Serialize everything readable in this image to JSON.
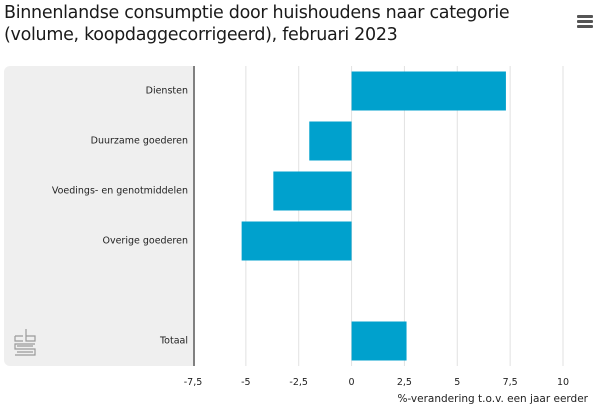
{
  "header": {
    "title_line1": "Binnenlandse consumptie door huishoudens naar categorie",
    "title_line2": "(volume, koopdaggecorrigeerd), februari 2023",
    "menu_icon": "hamburger-menu-icon"
  },
  "chart_data": {
    "type": "bar",
    "orientation": "horizontal",
    "title": "Binnenlandse consumptie door huishoudens naar categorie (volume, koopdaggecorrigeerd), februari 2023",
    "categories": [
      "Diensten",
      "Duurzame goederen",
      "Voedings- en genotmiddelen",
      "Overige goederen",
      "",
      "Totaal"
    ],
    "values": [
      7.3,
      -2.0,
      -3.7,
      -5.2,
      null,
      2.6
    ],
    "xlabel": "%-verandering t.o.v. een jaar eerder",
    "ylabel": "",
    "xlim": [
      -7.5,
      10
    ],
    "ticks": [
      -7.5,
      -5,
      -2.5,
      0,
      2.5,
      5,
      7.5,
      10
    ],
    "tick_labels": [
      "-7,5",
      "-5",
      "-2,5",
      "0",
      "2,5",
      "5",
      "7,5",
      "10"
    ],
    "grid": true,
    "bar_color": "#00a1cd",
    "legend": "none"
  },
  "logo": {
    "name": "cbs-logo-icon"
  }
}
